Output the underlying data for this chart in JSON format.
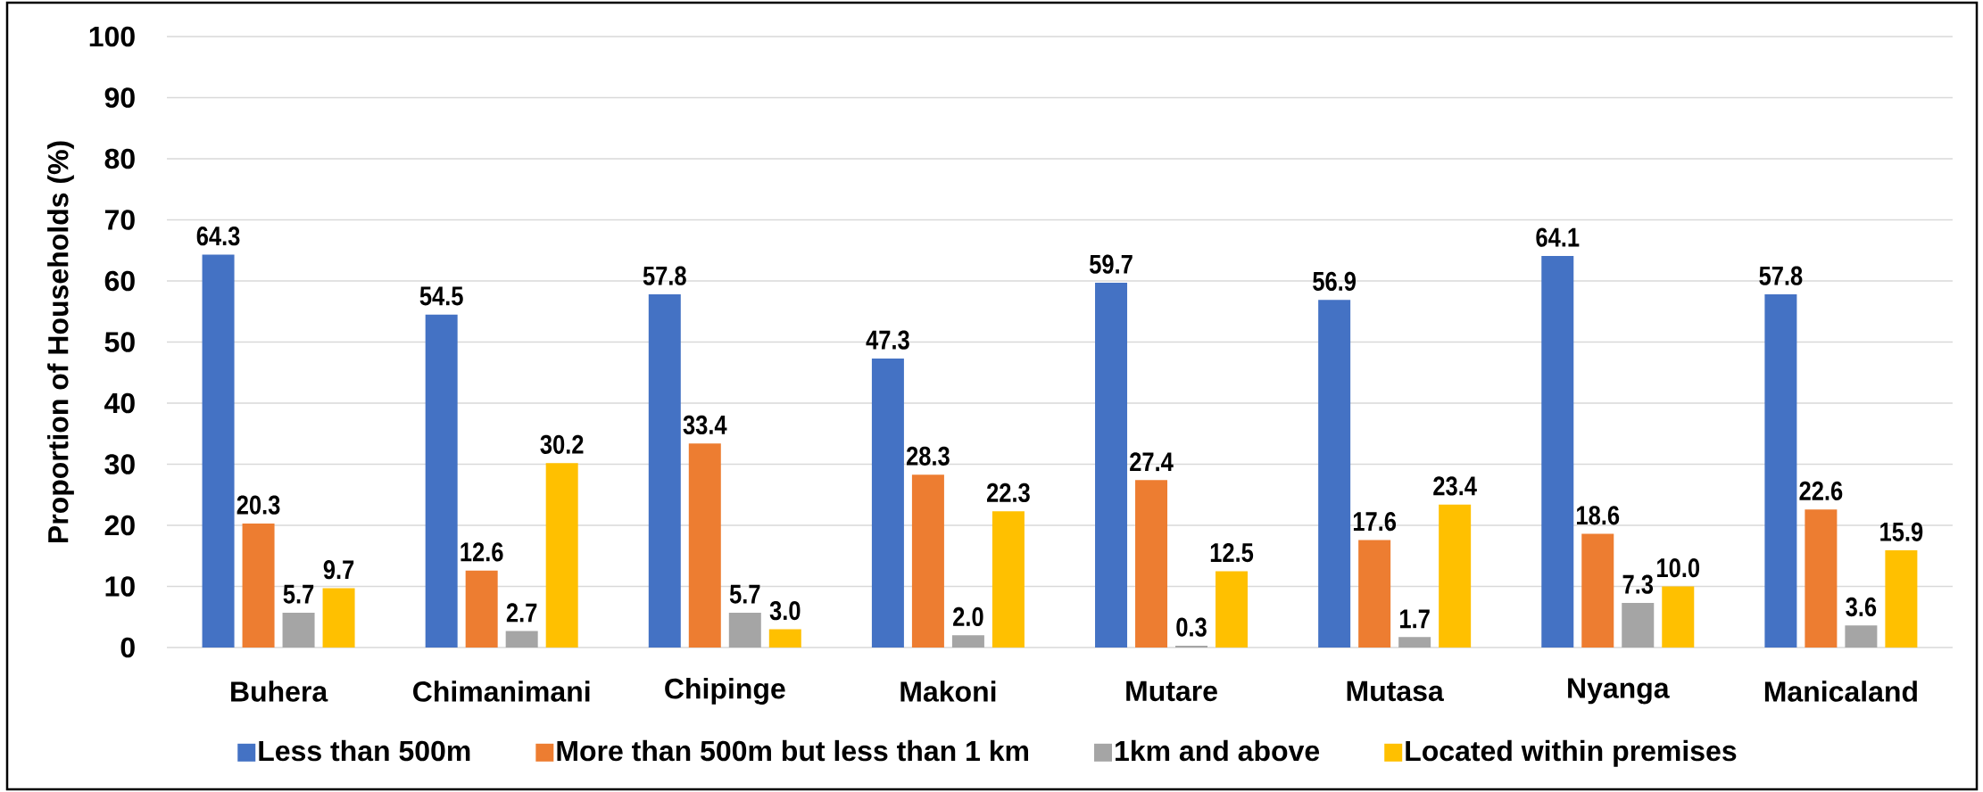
{
  "chart_data": {
    "type": "bar",
    "ylabel": "Proportion of Households (%)",
    "categories": [
      "Buhera",
      "Chimanimani",
      "Chipinge",
      "Makoni",
      "Mutare",
      "Mutasa",
      "Nyanga",
      "Manicaland"
    ],
    "series": [
      {
        "name": "Less than 500m",
        "color": "#4472c4",
        "values": [
          64.3,
          54.5,
          57.8,
          47.3,
          59.7,
          56.9,
          64.1,
          57.8
        ],
        "value_labels": [
          "64.3",
          "54.5",
          "57.8",
          "47.3",
          "59.7",
          "56.9",
          "64.1",
          "57.8"
        ]
      },
      {
        "name": "More than 500m but less than 1 km",
        "color": "#ed7d31",
        "values": [
          20.3,
          12.6,
          33.4,
          28.3,
          27.4,
          17.6,
          18.6,
          22.6
        ],
        "value_labels": [
          "20.3",
          "12.6",
          "33.4",
          "28.3",
          "27.4",
          "17.6",
          "18.6",
          "22.6"
        ]
      },
      {
        "name": "1km and above",
        "color": "#a5a5a5",
        "values": [
          5.7,
          2.7,
          5.7,
          2.0,
          0.3,
          1.7,
          7.3,
          3.6
        ],
        "value_labels": [
          "5.7",
          "2.7",
          "5.7",
          "2.0",
          "0.3",
          "1.7",
          "7.3",
          "3.6"
        ]
      },
      {
        "name": "Located within premises",
        "color": "#ffc000",
        "values": [
          9.7,
          30.2,
          3.0,
          22.3,
          12.5,
          23.4,
          10.0,
          15.9
        ],
        "value_labels": [
          "9.7",
          "30.2",
          "3.0",
          "22.3",
          "12.5",
          "23.4",
          "10.0",
          "15.9"
        ]
      }
    ],
    "ylim": [
      0,
      100
    ],
    "yticks": [
      0,
      10,
      20,
      30,
      40,
      50,
      60,
      70,
      80,
      90,
      100
    ],
    "grid": "y",
    "legend": "bottom"
  }
}
